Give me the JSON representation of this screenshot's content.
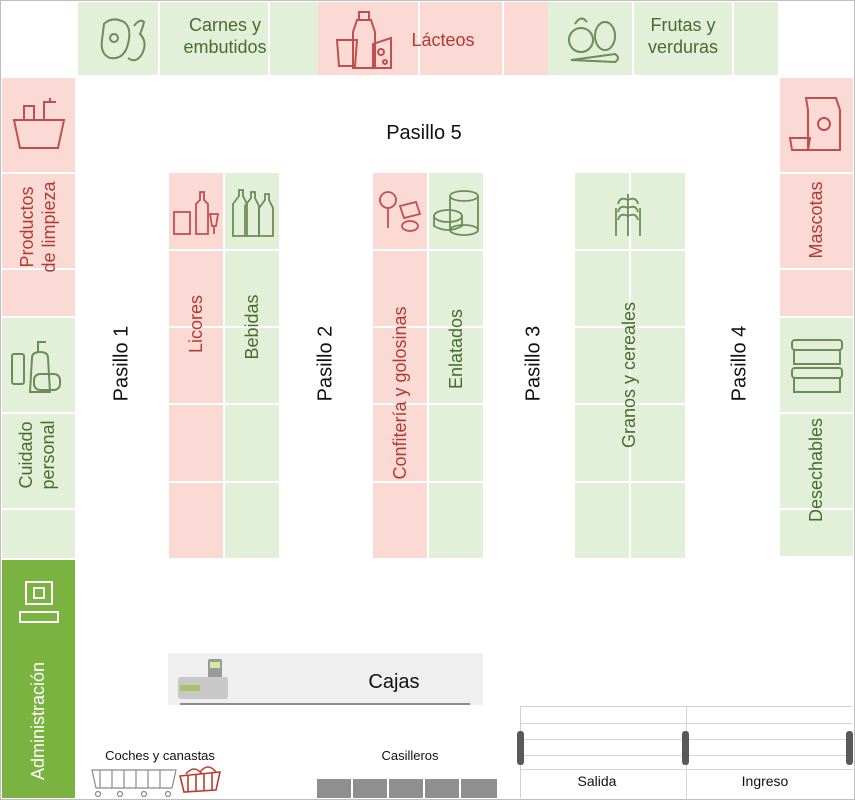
{
  "top": {
    "carnes": "Carnes y\nembutidos",
    "lacteos": "Lácteos",
    "frutas": "Frutas y\nverduras"
  },
  "left": {
    "limpieza": "Productos\nde limpieza",
    "cuidado": "Cuidado\npersonal",
    "admin": "Administración"
  },
  "right": {
    "mascotas": "Mascotas",
    "desechables": "Desechables"
  },
  "shelves": {
    "licores": "Licores",
    "bebidas": "Bebidas",
    "confiteria": "Confitería y golosinas",
    "enlatados": "Enlatados",
    "granos": "Granos y cereales"
  },
  "aisles": {
    "p1": "Pasillo 1",
    "p2": "Pasillo 2",
    "p3": "Pasillo 3",
    "p4": "Pasillo 4",
    "p5": "Pasillo 5"
  },
  "bottom": {
    "cajas": "Cajas",
    "coches": "Coches y canastas",
    "casilleros": "Casilleros",
    "salida": "Salida",
    "ingreso": "Ingreso"
  },
  "colors": {
    "green_bg": "#e2efd9",
    "pink_bg": "#fbdad5",
    "admin_green": "#7ab33f",
    "green_text": "#4a6b2e",
    "red_text": "#b23a30"
  }
}
